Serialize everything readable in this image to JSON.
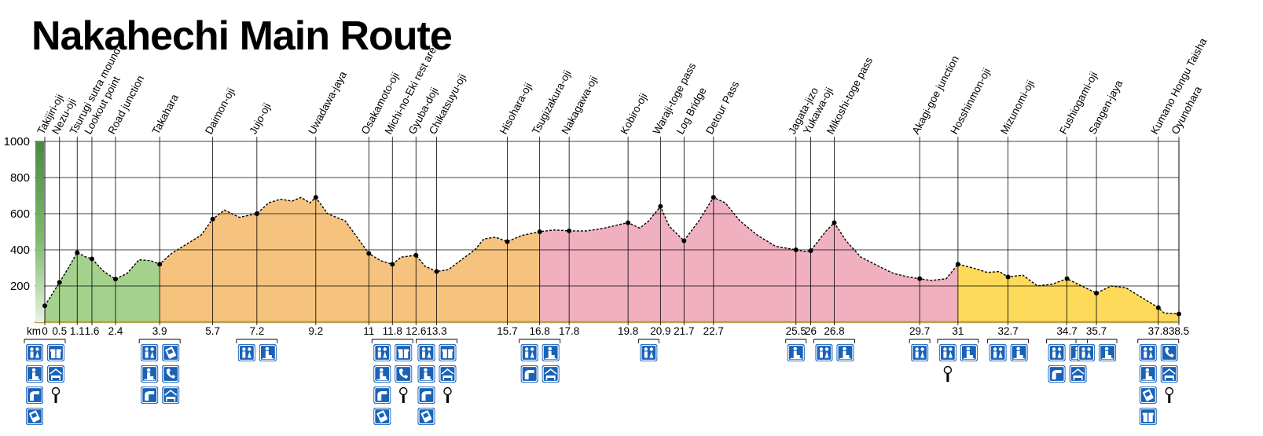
{
  "chart_data": {
    "type": "area",
    "title": "Nakahechi Main Route",
    "xlabel": "km",
    "ylabel": "",
    "ylim": [
      0,
      1000
    ],
    "xlim": [
      0,
      38.5
    ],
    "y_ticks": [
      "1000",
      "800",
      "600",
      "400",
      "200"
    ],
    "y_tick_values": [
      1000,
      800,
      600,
      400,
      200
    ],
    "grid": true,
    "legend": "none",
    "colors": {
      "segment1": "#a4d28c",
      "segment2": "#f5c37e",
      "segment3": "#f0b0c0",
      "segment4": "#fdda5a",
      "ridge": "#000000",
      "baseline": "#b5a04a",
      "scale_bar_dark": "#4a8a40",
      "scale_bar_light": "#e6f3df",
      "icon_blue": "#1a62b8"
    },
    "segments": [
      {
        "from": 0,
        "to": 3.9,
        "color": "#a4d28c"
      },
      {
        "from": 3.9,
        "to": 16.8,
        "color": "#f5c37e"
      },
      {
        "from": 16.8,
        "to": 31,
        "color": "#f0b0c0"
      },
      {
        "from": 31,
        "to": 38.5,
        "color": "#fdda5a"
      }
    ],
    "profile": [
      [
        0,
        90
      ],
      [
        0.5,
        220
      ],
      [
        0.8,
        300
      ],
      [
        1.1,
        385
      ],
      [
        1.4,
        360
      ],
      [
        1.6,
        350
      ],
      [
        2.0,
        280
      ],
      [
        2.4,
        238
      ],
      [
        2.8,
        270
      ],
      [
        3.2,
        345
      ],
      [
        3.6,
        340
      ],
      [
        3.9,
        320
      ],
      [
        4.3,
        380
      ],
      [
        4.9,
        440
      ],
      [
        5.3,
        480
      ],
      [
        5.7,
        570
      ],
      [
        6.1,
        620
      ],
      [
        6.6,
        580
      ],
      [
        7.2,
        600
      ],
      [
        7.6,
        660
      ],
      [
        8.0,
        680
      ],
      [
        8.4,
        670
      ],
      [
        8.7,
        690
      ],
      [
        9.0,
        660
      ],
      [
        9.2,
        690
      ],
      [
        9.6,
        600
      ],
      [
        10.2,
        560
      ],
      [
        10.6,
        470
      ],
      [
        11.0,
        380
      ],
      [
        11.4,
        340
      ],
      [
        11.8,
        320
      ],
      [
        12.1,
        360
      ],
      [
        12.6,
        370
      ],
      [
        12.9,
        310
      ],
      [
        13.3,
        280
      ],
      [
        13.7,
        290
      ],
      [
        14.1,
        340
      ],
      [
        14.6,
        400
      ],
      [
        14.9,
        460
      ],
      [
        15.3,
        470
      ],
      [
        15.7,
        445
      ],
      [
        16.2,
        480
      ],
      [
        16.8,
        500
      ],
      [
        17.3,
        510
      ],
      [
        17.8,
        505
      ],
      [
        18.4,
        505
      ],
      [
        19.0,
        520
      ],
      [
        19.5,
        540
      ],
      [
        19.8,
        550
      ],
      [
        20.2,
        520
      ],
      [
        20.5,
        560
      ],
      [
        20.9,
        640
      ],
      [
        21.2,
        530
      ],
      [
        21.7,
        450
      ],
      [
        22.2,
        560
      ],
      [
        22.7,
        690
      ],
      [
        23.1,
        660
      ],
      [
        23.6,
        560
      ],
      [
        24.2,
        480
      ],
      [
        24.8,
        420
      ],
      [
        25.5,
        400
      ],
      [
        25.8,
        390
      ],
      [
        26.0,
        395
      ],
      [
        26.5,
        500
      ],
      [
        26.8,
        550
      ],
      [
        27.2,
        450
      ],
      [
        27.7,
        360
      ],
      [
        28.3,
        310
      ],
      [
        28.8,
        270
      ],
      [
        29.3,
        250
      ],
      [
        29.7,
        240
      ],
      [
        30.1,
        230
      ],
      [
        30.6,
        240
      ],
      [
        31.0,
        320
      ],
      [
        31.5,
        300
      ],
      [
        32.0,
        275
      ],
      [
        32.4,
        280
      ],
      [
        32.7,
        250
      ],
      [
        33.2,
        260
      ],
      [
        33.7,
        200
      ],
      [
        34.2,
        210
      ],
      [
        34.7,
        240
      ],
      [
        35.2,
        200
      ],
      [
        35.7,
        160
      ],
      [
        36.2,
        200
      ],
      [
        36.7,
        190
      ],
      [
        37.3,
        130
      ],
      [
        37.8,
        80
      ],
      [
        38.0,
        50
      ],
      [
        38.5,
        45
      ]
    ],
    "waypoints": [
      {
        "name": "Takijiri-oji",
        "x": 0,
        "y": 90,
        "tick": "0"
      },
      {
        "name": "Nezu-oji",
        "x": 0.5,
        "y": 220,
        "tick": "0.5"
      },
      {
        "name": "Tsurugi sutra mound",
        "x": 1.1,
        "y": 385,
        "tick": "1.1"
      },
      {
        "name": "Lookout point",
        "x": 1.6,
        "y": 350,
        "tick": "1.6"
      },
      {
        "name": "Road junction",
        "x": 2.4,
        "y": 238,
        "tick": "2.4"
      },
      {
        "name": "Takahara",
        "x": 3.9,
        "y": 320,
        "tick": "3.9"
      },
      {
        "name": "Daimon-oji",
        "x": 5.7,
        "y": 570,
        "tick": "5.7"
      },
      {
        "name": "Jujo-oji",
        "x": 7.2,
        "y": 600,
        "tick": "7.2"
      },
      {
        "name": "Uwadawa-jaya",
        "x": 9.2,
        "y": 690,
        "tick": "9.2"
      },
      {
        "name": "Osakamoto-oji",
        "x": 11,
        "y": 380,
        "tick": "11"
      },
      {
        "name": "Michi-no-Eki rest area",
        "x": 11.8,
        "y": 320,
        "tick": "11.8"
      },
      {
        "name": "Gyuba-doji",
        "x": 12.6,
        "y": 370,
        "tick": "12.6"
      },
      {
        "name": "Chikatsuyu-oji",
        "x": 13.3,
        "y": 280,
        "tick": "13.3"
      },
      {
        "name": "Hisohara-oji",
        "x": 15.7,
        "y": 445,
        "tick": "15.7"
      },
      {
        "name": "Tsugizakura-oji",
        "x": 16.8,
        "y": 500,
        "tick": "16.8"
      },
      {
        "name": "Nakagawa-oji",
        "x": 17.8,
        "y": 505,
        "tick": "17.8"
      },
      {
        "name": "Kobiro-oji",
        "x": 19.8,
        "y": 550,
        "tick": "19.8"
      },
      {
        "name": "Waraji-toge pass",
        "x": 20.9,
        "y": 640,
        "tick": "20.9"
      },
      {
        "name": "Log Bridge",
        "x": 21.7,
        "y": 450,
        "tick": "21.7"
      },
      {
        "name": "Detour Pass",
        "x": 22.7,
        "y": 690,
        "tick": "22.7"
      },
      {
        "name": "Jagata-jizo",
        "x": 25.5,
        "y": 400,
        "tick": "25.5"
      },
      {
        "name": "Yukawa-oji",
        "x": 26,
        "y": 395,
        "tick": "26"
      },
      {
        "name": "Mikoshi-toge pass",
        "x": 26.8,
        "y": 550,
        "tick": "26.8"
      },
      {
        "name": "Akagi-goe junction",
        "x": 29.7,
        "y": 240,
        "tick": "29.7"
      },
      {
        "name": "Hosshinmon-oji",
        "x": 31,
        "y": 320,
        "tick": "31"
      },
      {
        "name": "Mizunomi-oji",
        "x": 32.7,
        "y": 250,
        "tick": "32.7"
      },
      {
        "name": "Fushiogami-oji",
        "x": 34.7,
        "y": 240,
        "tick": "34.7"
      },
      {
        "name": "Sangen-jaya",
        "x": 35.7,
        "y": 160,
        "tick": "35.7"
      },
      {
        "name": "Kumano Hongu Taisha",
        "x": 37.8,
        "y": 80,
        "tick": "37.8"
      },
      {
        "name": "Oyunohara",
        "x": 38.5,
        "y": 45,
        "tick": "38.5"
      }
    ],
    "facilities": [
      {
        "x": 0,
        "icons": [
          "toilet-icon",
          "gift-shop-icon",
          "rest-bench-icon",
          "lodging-icon",
          "drinking-fountain-icon",
          "bus-stop-icon",
          "vending-machine-icon"
        ]
      },
      {
        "x": 3.9,
        "icons": [
          "toilet-icon",
          "vending-machine-icon",
          "rest-bench-icon",
          "telephone-icon",
          "drinking-fountain-icon",
          "lodging-icon"
        ]
      },
      {
        "x": 7.2,
        "icons": [
          "toilet-icon",
          "rest-bench-icon"
        ]
      },
      {
        "x": 11.8,
        "icons": [
          "toilet-icon",
          "gift-shop-icon",
          "rest-bench-icon",
          "telephone-icon",
          "drinking-fountain-icon",
          "bus-stop-icon",
          "vending-machine-icon"
        ]
      },
      {
        "x": 13.3,
        "icons": [
          "toilet-icon",
          "gift-shop-icon",
          "rest-bench-icon",
          "lodging-icon",
          "drinking-fountain-icon",
          "bus-stop-icon",
          "vending-machine-icon"
        ]
      },
      {
        "x": 16.8,
        "icons": [
          "toilet-icon",
          "rest-bench-icon",
          "drinking-fountain-icon",
          "lodging-icon"
        ]
      },
      {
        "x": 20.5,
        "icons": [
          "toilet-icon"
        ]
      },
      {
        "x": 25.5,
        "icons": [
          "rest-bench-icon"
        ]
      },
      {
        "x": 26.8,
        "icons": [
          "toilet-icon",
          "rest-bench-icon"
        ]
      },
      {
        "x": 29.7,
        "icons": [
          "toilet-icon"
        ]
      },
      {
        "x": 31,
        "icons": [
          "toilet-icon",
          "rest-bench-icon",
          "bus-stop-icon"
        ]
      },
      {
        "x": 32.7,
        "icons": [
          "toilet-icon",
          "rest-bench-icon"
        ]
      },
      {
        "x": 34.7,
        "icons": [
          "toilet-icon",
          "rest-bench-icon",
          "drinking-fountain-icon",
          "lodging-icon"
        ]
      },
      {
        "x": 35.7,
        "icons": [
          "toilet-icon",
          "rest-bench-icon"
        ]
      },
      {
        "x": 37.8,
        "icons": [
          "toilet-icon",
          "telephone-icon",
          "rest-bench-icon",
          "lodging-icon",
          "vending-machine-icon",
          "bus-stop-icon",
          "gift-shop-icon"
        ]
      }
    ]
  }
}
